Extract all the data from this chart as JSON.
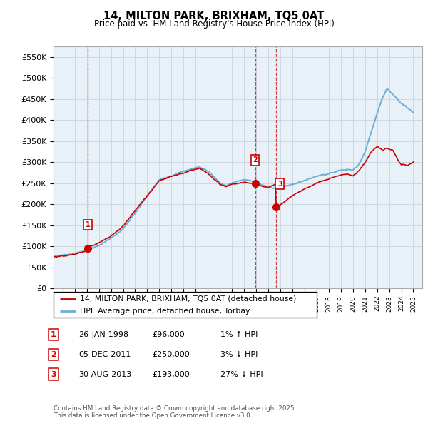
{
  "title": "14, MILTON PARK, BRIXHAM, TQ5 0AT",
  "subtitle": "Price paid vs. HM Land Registry's House Price Index (HPI)",
  "ylim": [
    0,
    575000
  ],
  "yticks": [
    0,
    50000,
    100000,
    150000,
    200000,
    250000,
    300000,
    350000,
    400000,
    450000,
    500000,
    550000
  ],
  "ytick_labels": [
    "£0",
    "£50K",
    "£100K",
    "£150K",
    "£200K",
    "£250K",
    "£300K",
    "£350K",
    "£400K",
    "£450K",
    "£500K",
    "£550K"
  ],
  "hpi_color": "#6baed6",
  "price_color": "#cc0000",
  "vline_color": "#cc0000",
  "legend_label_price": "14, MILTON PARK, BRIXHAM, TQ5 0AT (detached house)",
  "legend_label_hpi": "HPI: Average price, detached house, Torbay",
  "sale_decimals": [
    1998.07,
    2011.92,
    2013.66
  ],
  "sale_prices": [
    96000,
    250000,
    193000
  ],
  "sale_labels": [
    "1",
    "2",
    "3"
  ],
  "table_rows": [
    [
      "1",
      "26-JAN-1998",
      "£96,000",
      "1% ↑ HPI"
    ],
    [
      "2",
      "05-DEC-2011",
      "£250,000",
      "3% ↓ HPI"
    ],
    [
      "3",
      "30-AUG-2013",
      "£193,000",
      "27% ↓ HPI"
    ]
  ],
  "footer": "Contains HM Land Registry data © Crown copyright and database right 2025.\nThis data is licensed under the Open Government Licence v3.0.",
  "bg_color": "#ffffff",
  "chart_bg_color": "#e8f0f8",
  "grid_color": "#c8d4e0",
  "xlim_start": 1995.25,
  "xlim_end": 2025.75
}
